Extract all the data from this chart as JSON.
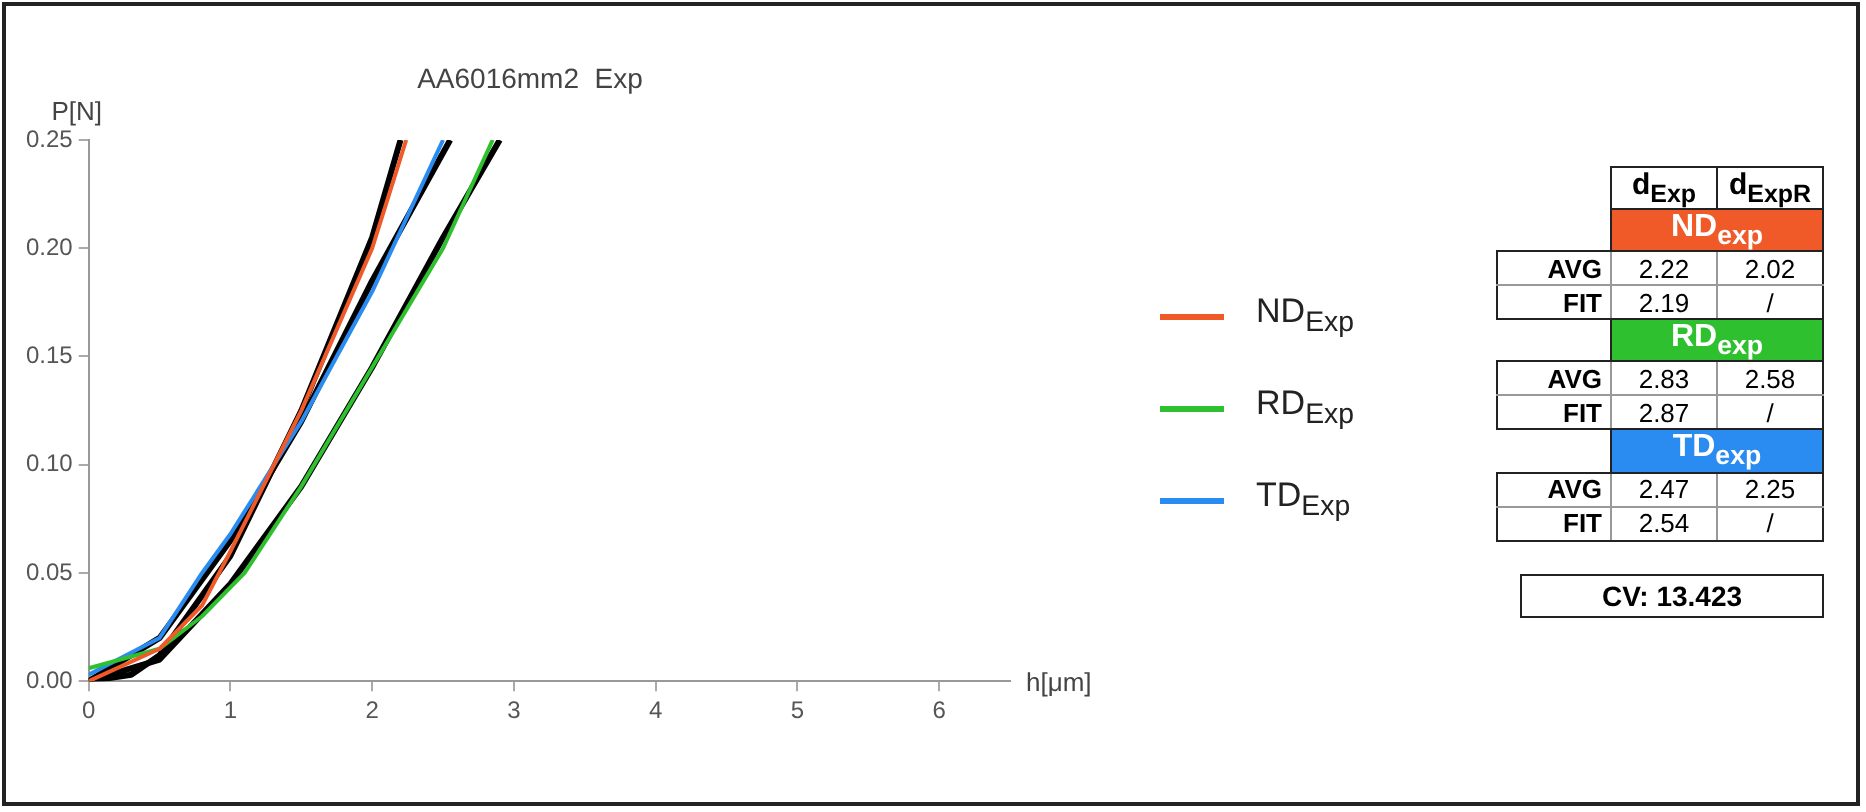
{
  "chart_data": [
    {
      "type": "line",
      "title": "AA6016mm2  Exp",
      "xlabel": "h[μm]",
      "ylabel": "P[N]",
      "xlim": [
        0,
        6.5
      ],
      "xticks": [
        0,
        1,
        2,
        3,
        4,
        5,
        6
      ],
      "ylim": [
        0,
        0.25
      ],
      "yticks": [
        {
          "value": 0,
          "label": "0.00"
        },
        {
          "value": 0.05,
          "label": "0.05"
        },
        {
          "value": 0.1,
          "label": "0.10"
        },
        {
          "value": 0.15,
          "label": "0.15"
        },
        {
          "value": 0.2,
          "label": "0.20"
        },
        {
          "value": 0.25,
          "label": "0.25"
        }
      ],
      "grid": false,
      "legend": "right",
      "marker": "none",
      "line_style": "solid",
      "series": [
        {
          "name": "ND$_{Exp}$",
          "color": "#f05a28",
          "x": [
            0,
            0.5,
            0.8,
            1,
            1.5,
            2,
            2.24
          ],
          "values": [
            0,
            0.015,
            0.035,
            0.06,
            0.125,
            0.2,
            0.25
          ]
        },
        {
          "name": "RD$_{Exp}$",
          "color": "#2ec02e",
          "x": [
            0,
            0.5,
            0.8,
            1.1,
            1.5,
            2,
            2.5,
            2.85
          ],
          "values": [
            0.006,
            0.015,
            0.03,
            0.05,
            0.09,
            0.145,
            0.2,
            0.25
          ]
        },
        {
          "name": "TD$_{Exp}$",
          "color": "#2a8cf0",
          "x": [
            0,
            0.5,
            0.8,
            1,
            1.5,
            2,
            2.5
          ],
          "values": [
            0.003,
            0.02,
            0.05,
            0.068,
            0.12,
            0.18,
            0.25
          ]
        },
        {
          "color": "#000000",
          "x": [
            0,
            0.3,
            0.5,
            1,
            1.5,
            2,
            2.2
          ],
          "values": [
            0,
            0.003,
            0.012,
            0.058,
            0.125,
            0.205,
            0.25
          ]
        },
        {
          "color": "#000000",
          "x": [
            0,
            0.5,
            1,
            1.5,
            2,
            2.55
          ],
          "values": [
            0,
            0.02,
            0.065,
            0.12,
            0.185,
            0.25
          ]
        },
        {
          "color": "#000000",
          "x": [
            0,
            0.5,
            1,
            1.5,
            2,
            2.5,
            2.9
          ],
          "values": [
            0,
            0.01,
            0.045,
            0.09,
            0.145,
            0.205,
            0.25
          ]
        }
      ]
    },
    {
      "type": "other",
      "annotations": [
        "d$_{Exp}$",
        "d$_{ExpR}$",
        "ND$_{exp}$",
        "AVG",
        "2.22",
        "2.02",
        "FIT",
        "2.19",
        "/",
        "RD$_{exp}$",
        "AVG",
        "2.83",
        "2.58",
        "FIT",
        "2.87",
        "/",
        "TD$_{exp}$",
        "AVG",
        "2.47",
        "2.25",
        "FIT",
        "2.54",
        "/",
        "CV:  13.423"
      ],
      "colors": [
        "#f05a28",
        "#2ec02e",
        "#2a8cf0"
      ]
    }
  ]
}
